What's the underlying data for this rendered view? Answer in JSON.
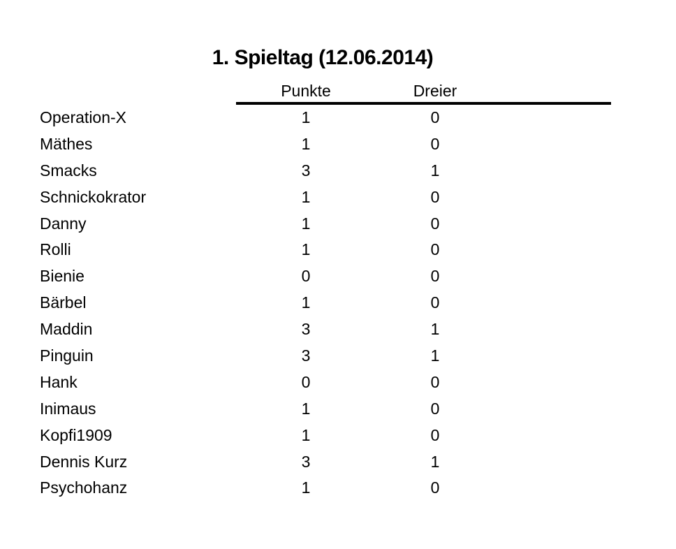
{
  "title": "1. Spieltag (12.06.2014)",
  "columns": {
    "punkte": "Punkte",
    "dreier": "Dreier"
  },
  "rows": [
    {
      "name": "Operation-X",
      "punkte": "1",
      "dreier": "0"
    },
    {
      "name": "Mäthes",
      "punkte": "1",
      "dreier": "0"
    },
    {
      "name": "Smacks",
      "punkte": "3",
      "dreier": "1"
    },
    {
      "name": "Schnickokrator",
      "punkte": "1",
      "dreier": "0"
    },
    {
      "name": "Danny",
      "punkte": "1",
      "dreier": "0"
    },
    {
      "name": "Rolli",
      "punkte": "1",
      "dreier": "0"
    },
    {
      "name": "Bienie",
      "punkte": "0",
      "dreier": "0"
    },
    {
      "name": "Bärbel",
      "punkte": "1",
      "dreier": "0"
    },
    {
      "name": "Maddin",
      "punkte": "3",
      "dreier": "1"
    },
    {
      "name": "Pinguin",
      "punkte": "3",
      "dreier": "1"
    },
    {
      "name": "Hank",
      "punkte": "0",
      "dreier": "0"
    },
    {
      "name": "Inimaus",
      "punkte": "1",
      "dreier": "0"
    },
    {
      "name": "Kopfi1909",
      "punkte": "1",
      "dreier": "0"
    },
    {
      "name": "Dennis Kurz",
      "punkte": "3",
      "dreier": "1"
    },
    {
      "name": "Psychohanz",
      "punkte": "1",
      "dreier": "0"
    }
  ],
  "colors": {
    "text": "#000000",
    "background": "#ffffff",
    "rule": "#000000"
  },
  "chart_data": {
    "type": "table",
    "title": "1. Spieltag (12.06.2014)",
    "columns": [
      "Punkte",
      "Dreier"
    ],
    "categories": [
      "Operation-X",
      "Mäthes",
      "Smacks",
      "Schnickokrator",
      "Danny",
      "Rolli",
      "Bienie",
      "Bärbel",
      "Maddin",
      "Pinguin",
      "Hank",
      "Inimaus",
      "Kopfi1909",
      "Dennis Kurz",
      "Psychohanz"
    ],
    "series": [
      {
        "name": "Punkte",
        "values": [
          1,
          1,
          3,
          1,
          1,
          1,
          0,
          1,
          3,
          3,
          0,
          1,
          1,
          3,
          1
        ]
      },
      {
        "name": "Dreier",
        "values": [
          0,
          0,
          1,
          0,
          0,
          0,
          0,
          0,
          1,
          1,
          0,
          0,
          0,
          1,
          0
        ]
      }
    ]
  }
}
